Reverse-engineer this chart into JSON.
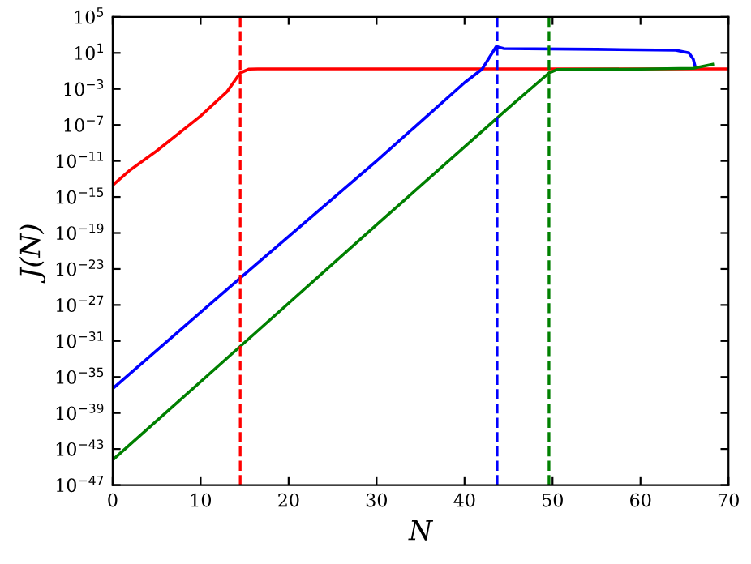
{
  "chart_data": {
    "type": "line",
    "xlabel": "N",
    "ylabel": "J(N)",
    "log": "y",
    "grid": false,
    "legend": false,
    "line_style": "solid",
    "marker": "none",
    "xlim": [
      0,
      70
    ],
    "xticks": [
      0,
      10,
      20,
      30,
      40,
      50,
      60,
      70
    ],
    "ylim": [
      1e-47,
      100000.0
    ],
    "yticks": [
      {
        "value": 100000.0,
        "label": "10$^{5}$"
      },
      {
        "value": 10.0,
        "label": "10$^{1}$"
      },
      {
        "value": 0.001,
        "label": "10$^{−3}$"
      },
      {
        "value": 1e-07,
        "label": "10$^{−7}$"
      },
      {
        "value": 1e-11,
        "label": "10$^{−11}$"
      },
      {
        "value": 1e-15,
        "label": "10$^{−15}$"
      },
      {
        "value": 1e-19,
        "label": "10$^{−19}$"
      },
      {
        "value": 1e-23,
        "label": "10$^{−23}$"
      },
      {
        "value": 1e-27,
        "label": "10$^{−27}$"
      },
      {
        "value": 1e-31,
        "label": "10$^{−31}$"
      },
      {
        "value": 1e-35,
        "label": "10$^{−35}$"
      },
      {
        "value": 1e-39,
        "label": "10$^{−39}$"
      },
      {
        "value": 1e-43,
        "label": "10$^{−43}$"
      },
      {
        "value": 1e-47,
        "label": "10$^{−47}$"
      }
    ],
    "series": [
      {
        "color": "#ff0000",
        "x": [
          0,
          2,
          5,
          10,
          13,
          14.5,
          15.5,
          16.5,
          30,
          50,
          70
        ],
        "values": [
          2e-14,
          1e-12,
          1.3e-10,
          1e-06,
          0.0005,
          0.06,
          0.16,
          0.17,
          0.17,
          0.17,
          0.17
        ]
      },
      {
        "color": "#0000ff",
        "x": [
          0,
          14.5,
          30,
          40,
          42,
          43.6,
          44.5,
          55,
          64,
          65.5,
          66,
          66.2
        ],
        "values": [
          5e-37,
          1e-24,
          1e-11,
          0.005,
          0.16,
          50,
          30,
          25,
          20,
          10,
          2,
          0.35
        ]
      },
      {
        "color": "#008000",
        "x": [
          0,
          14.5,
          30,
          45,
          49.6,
          50.5,
          60,
          66,
          68.2
        ],
        "values": [
          6e-45,
          2.5e-32,
          8e-19,
          8e-06,
          0.06,
          0.14,
          0.16,
          0.2,
          0.55
        ]
      }
    ],
    "ref_lines": [
      {
        "axis": "x",
        "value": 14.5,
        "color": "#ff0000",
        "line_style": "dashed"
      },
      {
        "axis": "x",
        "value": 43.7,
        "color": "#0000ff",
        "line_style": "dashed"
      },
      {
        "axis": "x",
        "value": 49.6,
        "color": "#008000",
        "line_style": "dashed"
      }
    ]
  }
}
